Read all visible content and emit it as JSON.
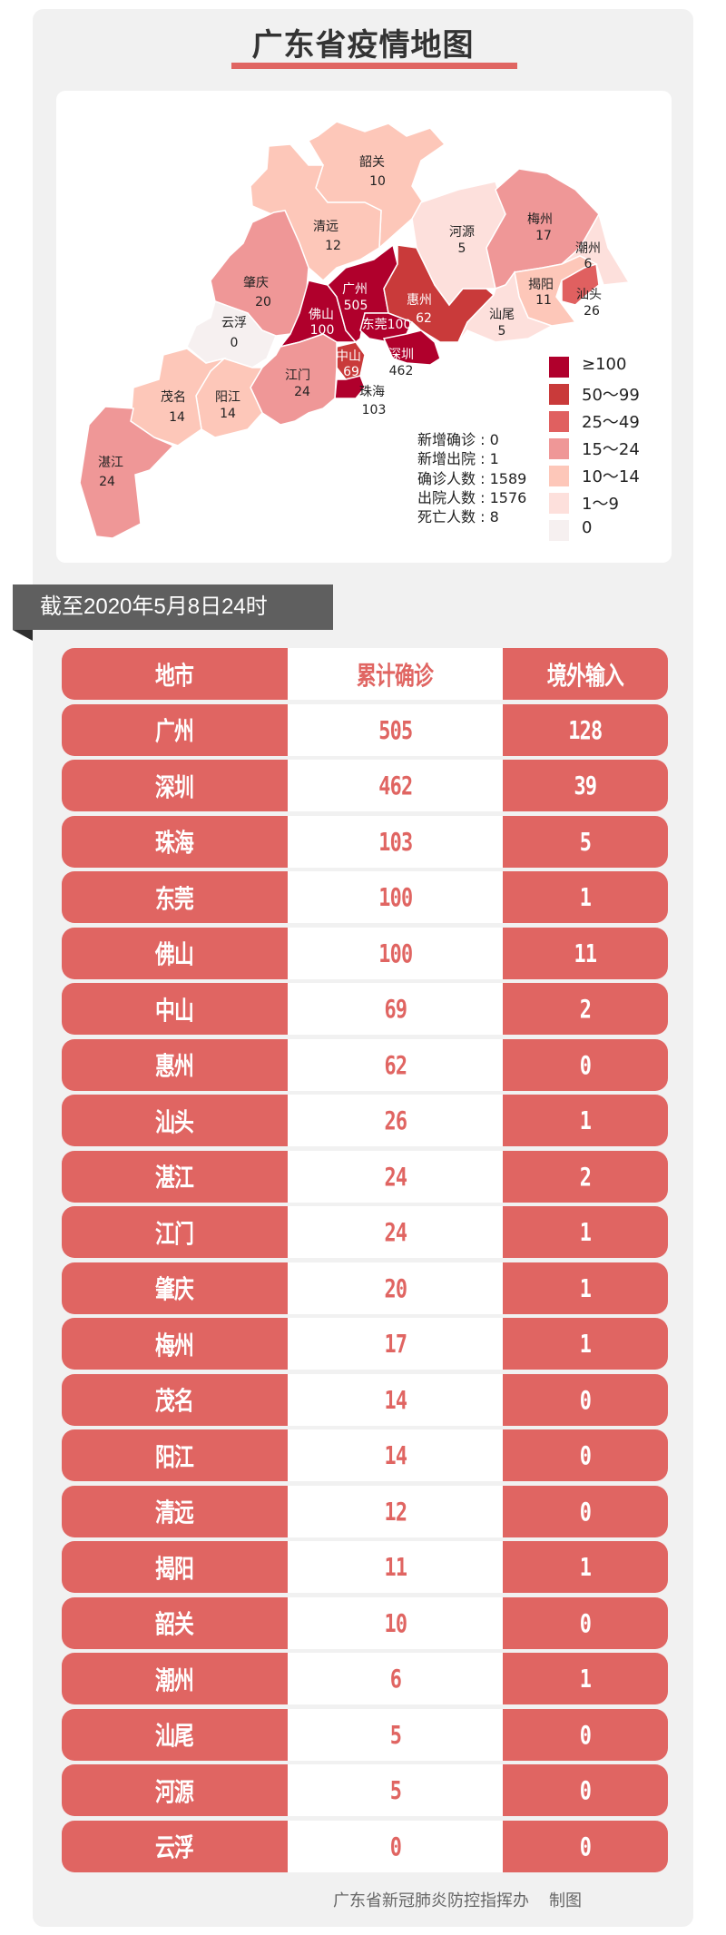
{
  "title": "广东省疫情地图",
  "map": {
    "regions": [
      {
        "name": "韶关",
        "value": "10"
      },
      {
        "name": "清远",
        "value": "12"
      },
      {
        "name": "肇庆",
        "value": "20"
      },
      {
        "name": "云浮",
        "value": "0"
      },
      {
        "name": "佛山",
        "value": "100"
      },
      {
        "name": "广州",
        "value": "505"
      },
      {
        "name": "惠州",
        "value": "62"
      },
      {
        "name": "东莞",
        "value": "100"
      },
      {
        "name": "深圳",
        "value": "462"
      },
      {
        "name": "中山",
        "value": "69"
      },
      {
        "name": "珠海",
        "value": "103"
      },
      {
        "name": "江门",
        "value": "24"
      },
      {
        "name": "阳江",
        "value": "14"
      },
      {
        "name": "茂名",
        "value": "14"
      },
      {
        "name": "湛江",
        "value": "24"
      },
      {
        "name": "河源",
        "value": "5"
      },
      {
        "name": "梅州",
        "value": "17"
      },
      {
        "name": "潮州",
        "value": "6"
      },
      {
        "name": "揭阳",
        "value": "11"
      },
      {
        "name": "汕头",
        "value": "26"
      },
      {
        "name": "汕尾",
        "value": "5"
      }
    ],
    "stats": [
      {
        "label": "新增确诊",
        "value": "0"
      },
      {
        "label": "新增出院",
        "value": "1"
      },
      {
        "label": "确诊人数",
        "value": "1589"
      },
      {
        "label": "出院人数",
        "value": "1576"
      },
      {
        "label": "死亡人数",
        "value": "8"
      }
    ],
    "legend": [
      {
        "label": "≥100",
        "color": "#b0002c"
      },
      {
        "label": "50～99",
        "color": "#c93a3a"
      },
      {
        "label": "25～49",
        "color": "#e06060"
      },
      {
        "label": "15～24",
        "color": "#ef9797"
      },
      {
        "label": "10～14",
        "color": "#fdc7b9"
      },
      {
        "label": "1～9",
        "color": "#fde0dc"
      },
      {
        "label": "0",
        "color": "#f6f0f0"
      }
    ]
  },
  "date_banner": "截至2020年5月8日24时",
  "table": {
    "headers": [
      "地市",
      "累计确诊",
      "境外输入"
    ],
    "rows": [
      [
        "广州",
        "505",
        "128"
      ],
      [
        "深圳",
        "462",
        "39"
      ],
      [
        "珠海",
        "103",
        "5"
      ],
      [
        "东莞",
        "100",
        "1"
      ],
      [
        "佛山",
        "100",
        "11"
      ],
      [
        "中山",
        "69",
        "2"
      ],
      [
        "惠州",
        "62",
        "0"
      ],
      [
        "汕头",
        "26",
        "1"
      ],
      [
        "湛江",
        "24",
        "2"
      ],
      [
        "江门",
        "24",
        "1"
      ],
      [
        "肇庆",
        "20",
        "1"
      ],
      [
        "梅州",
        "17",
        "1"
      ],
      [
        "茂名",
        "14",
        "0"
      ],
      [
        "阳江",
        "14",
        "0"
      ],
      [
        "清远",
        "12",
        "0"
      ],
      [
        "揭阳",
        "11",
        "1"
      ],
      [
        "韶关",
        "10",
        "0"
      ],
      [
        "潮州",
        "6",
        "1"
      ],
      [
        "汕尾",
        "5",
        "0"
      ],
      [
        "河源",
        "5",
        "0"
      ],
      [
        "云浮",
        "0",
        "0"
      ]
    ]
  },
  "footer": {
    "org": "广东省新冠肺炎防控指挥办",
    "suffix": "制图"
  },
  "colors": {
    "accent": "#e06562",
    "banner": "#5f5f5f",
    "card": "#f1f1f1"
  }
}
